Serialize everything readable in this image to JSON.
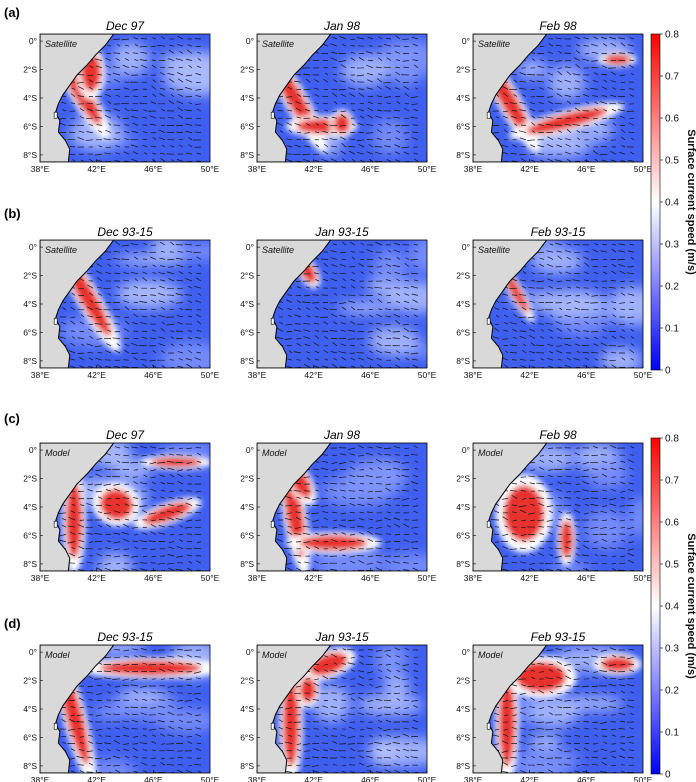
{
  "chart_data": {
    "type": "heatmap",
    "panel_rows": [
      {
        "label": "(a)",
        "source": "Satellite",
        "titles": [
          "Dec 97",
          "Jan 98",
          "Feb 98"
        ]
      },
      {
        "label": "(b)",
        "source": "Satellite",
        "titles": [
          "Dec 93-15",
          "Jan 93-15",
          "Feb 93-15"
        ]
      },
      {
        "label": "(c)",
        "source": "Model",
        "titles": [
          "Dec 97",
          "Jan 98",
          "Feb 98"
        ]
      },
      {
        "label": "(d)",
        "source": "Model",
        "titles": [
          "Dec 93-15",
          "Jan 93-15",
          "Feb 93-15"
        ]
      }
    ],
    "x_ticks": [
      "38°E",
      "42°E",
      "46°E",
      "50°E"
    ],
    "x_tick_values": [
      38,
      42,
      46,
      50
    ],
    "y_ticks": [
      "0°",
      "2°S",
      "4°S",
      "6°S",
      "8°S"
    ],
    "y_tick_values": [
      0,
      -2,
      -4,
      -6,
      -8
    ],
    "xlim": [
      38,
      50
    ],
    "ylim": [
      -8.5,
      0.5
    ],
    "colorbar": {
      "label": "Surface current speed (m/s)",
      "ticks": [
        "0",
        "0.1",
        "0.2",
        "0.3",
        "0.4",
        "0.5",
        "0.6",
        "0.7",
        "0.8"
      ],
      "range": [
        0,
        0.8
      ],
      "colors": [
        "#0000ff",
        "#ffffff",
        "#ff0000"
      ]
    },
    "land_color": "#d9d9d9"
  }
}
